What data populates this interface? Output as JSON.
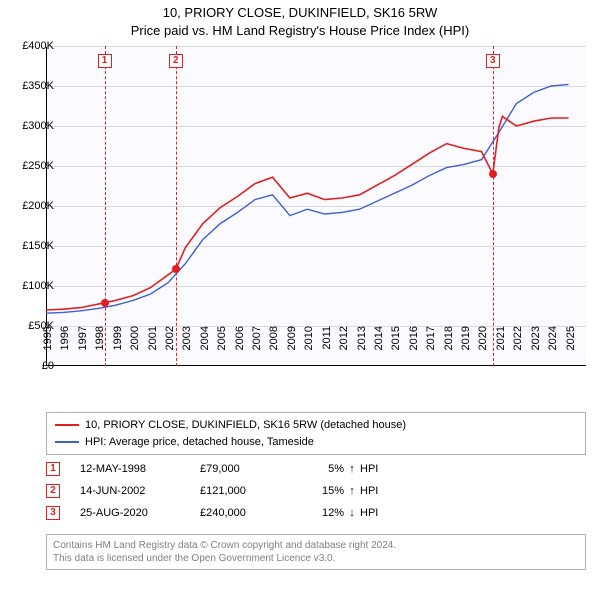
{
  "title": {
    "line1": "10, PRIORY CLOSE, DUKINFIELD, SK16 5RW",
    "line2": "Price paid vs. HM Land Registry's House Price Index (HPI)"
  },
  "chart": {
    "type": "line",
    "background_color": "#fafaff",
    "grid_color": "#d8d8e0",
    "axis_color": "#000000",
    "xlim": [
      1995,
      2026
    ],
    "ylim": [
      0,
      400000
    ],
    "ytick_step": 50000,
    "yticks": [
      "£0",
      "£50K",
      "£100K",
      "£150K",
      "£200K",
      "£250K",
      "£300K",
      "£350K",
      "£400K"
    ],
    "xticks": [
      "1995",
      "1996",
      "1997",
      "1998",
      "1999",
      "2000",
      "2001",
      "2002",
      "2003",
      "2004",
      "2005",
      "2006",
      "2007",
      "2008",
      "2009",
      "2010",
      "2011",
      "2012",
      "2013",
      "2014",
      "2015",
      "2016",
      "2017",
      "2018",
      "2019",
      "2020",
      "2021",
      "2022",
      "2023",
      "2024",
      "2025"
    ],
    "tick_fontsize": 11,
    "series": {
      "price_paid": {
        "color": "#e02020",
        "width": 1.6,
        "label": "10, PRIORY CLOSE, DUKINFIELD, SK16 5RW (detached house)",
        "points": [
          [
            1995,
            70000
          ],
          [
            1996,
            71000
          ],
          [
            1997,
            73000
          ],
          [
            1998.36,
            79000
          ],
          [
            1999,
            82000
          ],
          [
            2000,
            88000
          ],
          [
            2001,
            98000
          ],
          [
            2002.45,
            121000
          ],
          [
            2003,
            148000
          ],
          [
            2004,
            178000
          ],
          [
            2005,
            198000
          ],
          [
            2006,
            212000
          ],
          [
            2007,
            228000
          ],
          [
            2008,
            236000
          ],
          [
            2009,
            210000
          ],
          [
            2010,
            216000
          ],
          [
            2011,
            208000
          ],
          [
            2012,
            210000
          ],
          [
            2013,
            214000
          ],
          [
            2014,
            226000
          ],
          [
            2015,
            238000
          ],
          [
            2016,
            252000
          ],
          [
            2017,
            266000
          ],
          [
            2018,
            278000
          ],
          [
            2019,
            272000
          ],
          [
            2020,
            268000
          ],
          [
            2020.65,
            240000
          ],
          [
            2021,
            298000
          ],
          [
            2021.2,
            312000
          ],
          [
            2022,
            300000
          ],
          [
            2023,
            306000
          ],
          [
            2024,
            310000
          ],
          [
            2025,
            310000
          ]
        ]
      },
      "hpi": {
        "color": "#4060d0",
        "width": 1.4,
        "label": "HPI: Average price, detached house, Tameside",
        "points": [
          [
            1995,
            66000
          ],
          [
            1996,
            67000
          ],
          [
            1997,
            69000
          ],
          [
            1998,
            72000
          ],
          [
            1999,
            76000
          ],
          [
            2000,
            82000
          ],
          [
            2001,
            90000
          ],
          [
            2002,
            104000
          ],
          [
            2003,
            128000
          ],
          [
            2004,
            158000
          ],
          [
            2005,
            178000
          ],
          [
            2006,
            192000
          ],
          [
            2007,
            208000
          ],
          [
            2008,
            214000
          ],
          [
            2009,
            188000
          ],
          [
            2010,
            196000
          ],
          [
            2011,
            190000
          ],
          [
            2012,
            192000
          ],
          [
            2013,
            196000
          ],
          [
            2014,
            206000
          ],
          [
            2015,
            216000
          ],
          [
            2016,
            226000
          ],
          [
            2017,
            238000
          ],
          [
            2018,
            248000
          ],
          [
            2019,
            252000
          ],
          [
            2020,
            258000
          ],
          [
            2021,
            292000
          ],
          [
            2022,
            328000
          ],
          [
            2023,
            342000
          ],
          [
            2024,
            350000
          ],
          [
            2025,
            352000
          ]
        ]
      }
    },
    "markers": [
      {
        "n": "1",
        "year": 1998.36,
        "value": 79000,
        "top_y": 8
      },
      {
        "n": "2",
        "year": 2002.45,
        "value": 121000,
        "top_y": 8
      },
      {
        "n": "3",
        "year": 2020.65,
        "value": 240000,
        "top_y": 8
      }
    ]
  },
  "legend": {
    "rows": [
      {
        "color": "#e02020",
        "label": "10, PRIORY CLOSE, DUKINFIELD, SK16 5RW (detached house)"
      },
      {
        "color": "#4060d0",
        "label": "HPI: Average price, detached house, Tameside"
      }
    ]
  },
  "transactions": [
    {
      "n": "1",
      "date": "12-MAY-1998",
      "price": "£79,000",
      "pct": "5%",
      "arrow": "↑",
      "hpi": "HPI"
    },
    {
      "n": "2",
      "date": "14-JUN-2002",
      "price": "£121,000",
      "pct": "15%",
      "arrow": "↑",
      "hpi": "HPI"
    },
    {
      "n": "3",
      "date": "25-AUG-2020",
      "price": "£240,000",
      "pct": "12%",
      "arrow": "↓",
      "hpi": "HPI"
    }
  ],
  "footer": {
    "line1": "Contains HM Land Registry data © Crown copyright and database right 2024.",
    "line2": "This data is licensed under the Open Government Licence v3.0."
  }
}
